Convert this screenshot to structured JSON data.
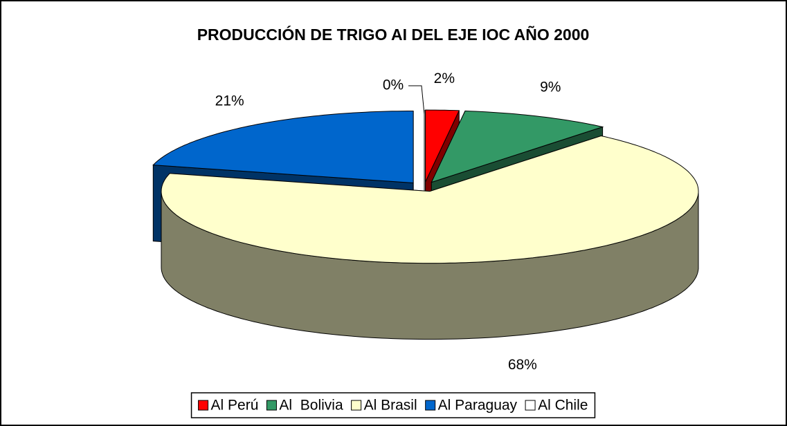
{
  "chart_data": {
    "type": "pie3d",
    "title": "PRODUCCIÓN DE TRIGO AI DEL EJE IOC AÑO 2000",
    "categories": [
      "Al Perú",
      "Al  Bolivia",
      "Al Brasil",
      "Al Paraguay",
      "Al Chile"
    ],
    "values": [
      2,
      9,
      68,
      21,
      0
    ],
    "value_labels": [
      "2%",
      "9%",
      "68%",
      "21%",
      "0%"
    ],
    "colors": [
      "#ff0000",
      "#339966",
      "#ffffcc",
      "#0066cc",
      "#ffffff"
    ],
    "legend": "bottom"
  }
}
